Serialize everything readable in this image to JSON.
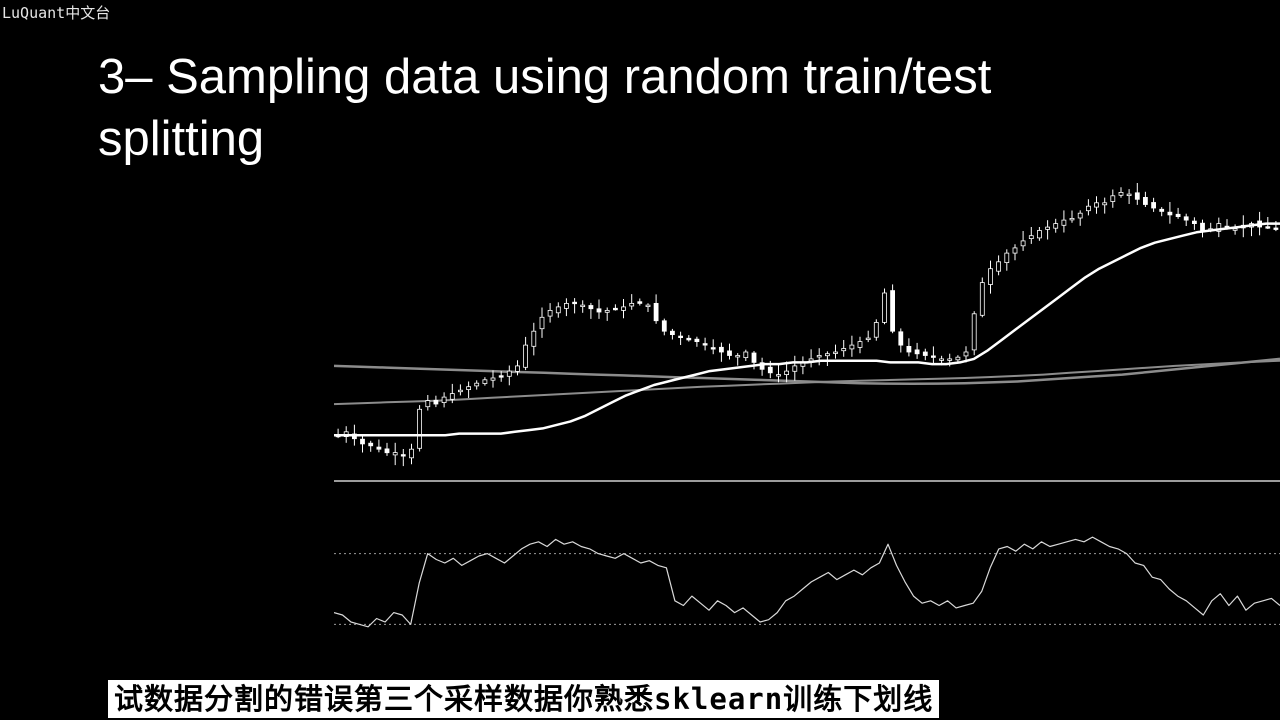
{
  "watermark": "LuQuant中文台",
  "slide": {
    "title": "3– Sampling data using random train/test splitting"
  },
  "subtitle": "试数据分割的错误第三个采样数据你熟悉sklearn训练下划线",
  "colors": {
    "background": "#000000",
    "price": "#ffffff",
    "ma_fast": "#ffffff",
    "ma_slow": "#8c8c8c",
    "oscillator": "#d9d9d9"
  },
  "chart_data": {
    "type": "line",
    "title": "",
    "xlabel": "",
    "ylabel": "",
    "candles": true,
    "price": [
      60,
      62,
      58,
      55,
      54,
      52,
      50,
      50,
      48,
      52,
      75,
      80,
      78,
      82,
      84,
      86,
      88,
      90,
      92,
      93,
      94,
      97,
      100,
      112,
      120,
      128,
      132,
      134,
      136,
      136,
      135,
      133,
      131,
      132,
      133,
      134,
      136,
      136,
      135,
      126,
      120,
      118,
      117,
      115,
      114,
      112,
      110,
      108,
      106,
      106,
      108,
      102,
      98,
      96,
      95,
      97,
      100,
      102,
      104,
      106,
      107,
      108,
      110,
      112,
      114,
      116,
      125,
      142,
      120,
      112,
      108,
      107,
      106,
      105,
      104,
      104,
      105,
      108,
      130,
      148,
      156,
      160,
      165,
      168,
      172,
      175,
      178,
      180,
      182,
      184,
      185,
      188,
      192,
      194,
      194,
      198,
      200,
      199,
      196,
      193,
      191,
      189,
      187,
      186,
      184,
      182,
      178,
      179,
      182,
      180,
      179,
      181,
      182,
      180,
      180,
      179
    ],
    "ma_fast": [
      60,
      60,
      60,
      60,
      60,
      60,
      60,
      60,
      60,
      61,
      61,
      61,
      61,
      62,
      63,
      64,
      66,
      68,
      71,
      75,
      79,
      83,
      86,
      89,
      91,
      93,
      95,
      97,
      98,
      99,
      100,
      101,
      101,
      102,
      102,
      103,
      103,
      103,
      103,
      103,
      102,
      102,
      102,
      101,
      101,
      102,
      104,
      109,
      115,
      121,
      127,
      133,
      139,
      145,
      151,
      156,
      160,
      164,
      168,
      171,
      173,
      175,
      177,
      178,
      179,
      180,
      181,
      182,
      182
    ],
    "ma_slow_a": [
      100,
      99.5,
      99,
      98.5,
      98,
      97.5,
      97,
      96.5,
      96,
      95.5,
      95,
      94.5,
      94,
      93.5,
      93,
      92.5,
      92,
      91.5,
      91,
      90.5,
      90,
      89.8,
      89.7,
      89.8,
      90,
      90.5,
      91,
      92,
      93,
      94,
      95,
      96.5,
      98,
      99.5,
      101,
      102.5,
      104
    ],
    "ma_slow_b": [
      78,
      78.5,
      79,
      79.5,
      80,
      80.8,
      81.6,
      82.4,
      83.2,
      84,
      84.8,
      85.6,
      86.4,
      87.2,
      88,
      88.6,
      89.2,
      89.8,
      90.4,
      91,
      91.4,
      91.8,
      92.2,
      92.6,
      93,
      93.6,
      94.2,
      95,
      96,
      97,
      98,
      99,
      100,
      100.8,
      101.6,
      102.3,
      103
    ],
    "oscillator": [
      30,
      28,
      22,
      20,
      18,
      25,
      22,
      30,
      28,
      20,
      55,
      80,
      75,
      72,
      76,
      70,
      74,
      78,
      80,
      76,
      72,
      78,
      84,
      88,
      90,
      86,
      92,
      88,
      90,
      86,
      84,
      80,
      78,
      76,
      80,
      76,
      72,
      74,
      70,
      68,
      40,
      36,
      44,
      38,
      32,
      40,
      36,
      30,
      34,
      28,
      22,
      24,
      30,
      40,
      44,
      50,
      56,
      60,
      64,
      58,
      62,
      66,
      62,
      68,
      72,
      88,
      70,
      56,
      44,
      38,
      40,
      36,
      40,
      34,
      36,
      38,
      48,
      68,
      84,
      86,
      82,
      88,
      84,
      90,
      86,
      88,
      90,
      92,
      90,
      94,
      90,
      86,
      84,
      80,
      72,
      70,
      60,
      58,
      50,
      44,
      40,
      34,
      28,
      40,
      46,
      36,
      44,
      32,
      38,
      40,
      42,
      36
    ],
    "oscillator_upper": 80,
    "oscillator_lower": 20
  }
}
